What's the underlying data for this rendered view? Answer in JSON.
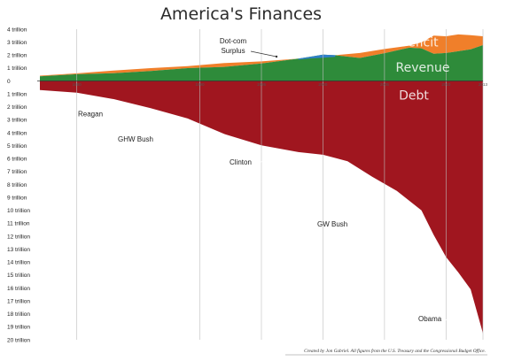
{
  "chart_data": {
    "type": "area",
    "title": "America's Finances",
    "credit": "Created by Jon Gabriel. All figures from the U.S. Treasury and the Congressional Budget Office.",
    "x_range": [
      1977,
      2013
    ],
    "x_ticks": [
      {
        "year": 1980,
        "label": "1980"
      },
      {
        "year": 1990,
        "label": "1990"
      },
      {
        "year": 1995,
        "label": "1995"
      },
      {
        "year": 2000,
        "label": "2000"
      },
      {
        "year": 2005,
        "label": "2005"
      },
      {
        "year": 2010,
        "label": "2010"
      },
      {
        "year": 2013,
        "label": "2013"
      }
    ],
    "y_ticks": [
      {
        "value": 4,
        "label": "4 trillion"
      },
      {
        "value": 3,
        "label": "3 trillion"
      },
      {
        "value": 2,
        "label": "2 trillion"
      },
      {
        "value": 1,
        "label": "1 trillion"
      },
      {
        "value": 0,
        "label": "0"
      },
      {
        "value": -1,
        "label": "1 trillion"
      },
      {
        "value": -2,
        "label": "2 trillion"
      },
      {
        "value": -3,
        "label": "3 trillion"
      },
      {
        "value": -4,
        "label": "4 trillion"
      },
      {
        "value": -5,
        "label": "5 trillion"
      },
      {
        "value": -6,
        "label": "6 trillion"
      },
      {
        "value": -7,
        "label": "7 trillion"
      },
      {
        "value": -8,
        "label": "8 trillion"
      },
      {
        "value": -9,
        "label": "9 trillion"
      },
      {
        "value": -10,
        "label": "10 trillion"
      },
      {
        "value": -11,
        "label": "11 trillion"
      },
      {
        "value": -12,
        "label": "12 trillion"
      },
      {
        "value": -13,
        "label": "13 trillion"
      },
      {
        "value": -14,
        "label": "14 trillion"
      },
      {
        "value": -15,
        "label": "15 trillion"
      },
      {
        "value": -16,
        "label": "16 trillion"
      },
      {
        "value": -17,
        "label": "17 trillion"
      },
      {
        "value": -18,
        "label": "18 trillion"
      },
      {
        "value": -19,
        "label": "19 trillion"
      },
      {
        "value": -20,
        "label": "20 trillion"
      }
    ],
    "series": [
      {
        "name": "Revenue",
        "color": "#2e8b3a",
        "x": [
          1977,
          1980,
          1983,
          1986,
          1989,
          1992,
          1995,
          1998,
          2000,
          2001,
          2003,
          2005,
          2007,
          2008,
          2009,
          2010,
          2011,
          2012,
          2013
        ],
        "values": [
          0.36,
          0.52,
          0.6,
          0.77,
          0.99,
          1.09,
          1.35,
          1.72,
          2.03,
          1.99,
          1.78,
          2.15,
          2.57,
          2.52,
          2.1,
          2.16,
          2.3,
          2.45,
          2.77
        ]
      },
      {
        "name": "Deficit",
        "color": "#f07f2a",
        "x": [
          1977,
          1980,
          1983,
          1986,
          1989,
          1992,
          1995,
          1998,
          2000,
          2001,
          2003,
          2005,
          2007,
          2008,
          2009,
          2010,
          2011,
          2012,
          2013
        ],
        "values": [
          0.05,
          0.07,
          0.21,
          0.22,
          0.15,
          0.29,
          0.16,
          0,
          0,
          0,
          0.38,
          0.32,
          0.16,
          0.46,
          1.41,
          1.29,
          1.3,
          1.09,
          0.68
        ]
      },
      {
        "name": "Dot-com Surplus",
        "color": "#2f7fc9",
        "x": [
          1998,
          1999,
          2000,
          2001
        ],
        "values": [
          0.07,
          0.13,
          0.24,
          0.13
        ]
      },
      {
        "name": "Debt",
        "color": "#a0161f",
        "x": [
          1977,
          1980,
          1983,
          1986,
          1989,
          1992,
          1995,
          1998,
          2000,
          2002,
          2004,
          2006,
          2008,
          2009,
          2010,
          2011,
          2012,
          2013
        ],
        "values": [
          -0.7,
          -0.9,
          -1.4,
          -2.1,
          -2.9,
          -4.1,
          -4.97,
          -5.5,
          -5.7,
          -6.2,
          -7.4,
          -8.5,
          -10.0,
          -11.9,
          -13.6,
          -14.8,
          -16.1,
          -19.5
        ]
      }
    ],
    "annotations": [
      {
        "label": "Reagan",
        "x": 1986,
        "y": -2.3
      },
      {
        "label": "GHW Bush",
        "x": 1990,
        "y": -4.1
      },
      {
        "label": "Clinton",
        "x": 2000,
        "y": -5.9
      },
      {
        "label": "GW Bush",
        "x": 2008,
        "y": -10.2
      },
      {
        "label": "Obama",
        "x": 2013,
        "y": -18.9
      },
      {
        "label": "Dot-com",
        "x": 1999,
        "y": 2.35
      },
      {
        "label": "Surplus",
        "x": 1999,
        "y": 2.35
      }
    ],
    "series_labels": [
      {
        "text": "Deficit",
        "series": "Deficit"
      },
      {
        "text": "Revenue",
        "series": "Revenue"
      },
      {
        "text": "Debt",
        "series": "Debt"
      }
    ],
    "grid": "vertical"
  }
}
